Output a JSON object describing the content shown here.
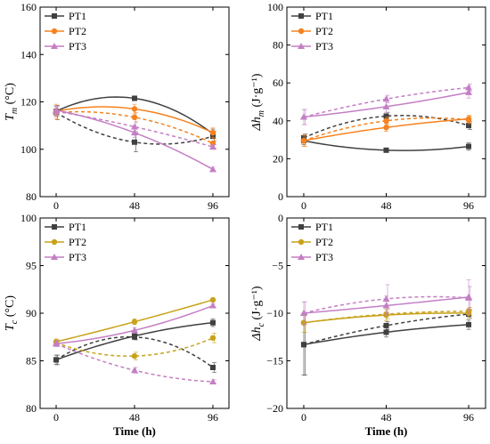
{
  "chart_data": [
    {
      "type": "line",
      "ylabel": "T_m (°C)",
      "xlabel": "",
      "ylim": [
        80,
        160
      ],
      "yticks": [
        80,
        100,
        120,
        140,
        160
      ],
      "x": [
        0,
        48,
        96
      ],
      "xticks": [
        "0",
        "48",
        "96"
      ],
      "legend_position": "top-left",
      "series": [
        {
          "name": "PT1",
          "color": "#404040",
          "marker": "square",
          "values": [
            116.0,
            121.5,
            106.5
          ],
          "errors": [
            2,
            1,
            2
          ],
          "dashed_values": [
            115.5,
            103.0,
            105.5
          ],
          "dashed_errors": [
            3,
            4,
            2
          ]
        },
        {
          "name": "PT2",
          "color": "#f5821f",
          "marker": "circle",
          "values": [
            116.0,
            117.0,
            107.0
          ],
          "errors": [
            3,
            2,
            2
          ],
          "dashed_values": [
            115.5,
            113.5,
            102.5
          ],
          "dashed_errors": [
            3,
            2,
            2
          ]
        },
        {
          "name": "PT3",
          "color": "#c47fc4",
          "marker": "triangle",
          "values": [
            116.5,
            107.0,
            91.5
          ],
          "errors": [
            2,
            2,
            1
          ],
          "dashed_values": [
            116.0,
            109.5,
            101.0
          ],
          "dashed_errors": [
            2,
            2,
            1
          ]
        }
      ]
    },
    {
      "type": "line",
      "ylabel": "Δh_m (J·g⁻¹)",
      "xlabel": "",
      "ylim": [
        0,
        100
      ],
      "yticks": [
        0,
        20,
        40,
        60,
        80,
        100
      ],
      "x": [
        0,
        48,
        96
      ],
      "xticks": [
        "0",
        "48",
        "96"
      ],
      "legend_position": "top-left",
      "series": [
        {
          "name": "PT1",
          "color": "#404040",
          "marker": "square",
          "values": [
            29.5,
            24.5,
            26.5
          ],
          "errors": [
            2,
            1,
            2
          ],
          "dashed_values": [
            31.0,
            42.5,
            37.5
          ],
          "dashed_errors": [
            2,
            2,
            2
          ]
        },
        {
          "name": "PT2",
          "color": "#f5821f",
          "marker": "circle",
          "values": [
            29.5,
            36.5,
            41.0
          ],
          "errors": [
            3,
            2,
            2
          ],
          "dashed_values": [
            29.5,
            40.0,
            40.5
          ],
          "dashed_errors": [
            3,
            2,
            2
          ]
        },
        {
          "name": "PT3",
          "color": "#c47fc4",
          "marker": "triangle",
          "values": [
            42.0,
            47.5,
            55.0
          ],
          "errors": [
            4,
            3,
            3
          ],
          "dashed_values": [
            42.0,
            51.5,
            57.5
          ],
          "dashed_errors": [
            4,
            2,
            2
          ]
        }
      ]
    },
    {
      "type": "line",
      "ylabel": "T_c (°C)",
      "xlabel": "Time (h)",
      "ylim": [
        80,
        100
      ],
      "yticks": [
        80,
        85,
        90,
        95,
        100
      ],
      "x": [
        0,
        48,
        96
      ],
      "xticks": [
        "0",
        "48",
        "96"
      ],
      "legend_position": "top-left",
      "series": [
        {
          "name": "PT1",
          "color": "#404040",
          "marker": "square",
          "values": [
            85.1,
            87.6,
            89.0
          ],
          "errors": [
            0.5,
            0.3,
            0.4
          ],
          "dashed_values": [
            85.1,
            87.5,
            84.3
          ],
          "dashed_errors": [
            0.5,
            0.3,
            0.5
          ]
        },
        {
          "name": "PT2",
          "color": "#c8a21a",
          "marker": "circle",
          "values": [
            87.0,
            89.1,
            91.4
          ],
          "errors": [
            0.3,
            0.3,
            0.2
          ],
          "dashed_values": [
            86.9,
            85.5,
            87.4
          ],
          "dashed_errors": [
            0.3,
            0.4,
            0.5
          ]
        },
        {
          "name": "PT3",
          "color": "#c47fc4",
          "marker": "triangle",
          "values": [
            86.8,
            88.2,
            90.8
          ],
          "errors": [
            0.3,
            0.3,
            0.2
          ],
          "dashed_values": [
            86.8,
            84.0,
            82.8
          ],
          "dashed_errors": [
            0.3,
            0.3,
            0.2
          ]
        }
      ]
    },
    {
      "type": "line",
      "ylabel": "Δh_c (J·g⁻¹)",
      "xlabel": "Time (h)",
      "ylim": [
        -20,
        0
      ],
      "yticks": [
        -20,
        -15,
        -10,
        -5,
        0
      ],
      "x": [
        0,
        48,
        96
      ],
      "xticks": [
        "0",
        "48",
        "96"
      ],
      "legend_position": "top-left",
      "series": [
        {
          "name": "PT1",
          "color": "#404040",
          "marker": "square",
          "values": [
            -13.3,
            -12.0,
            -11.2
          ],
          "errors": [
            3.2,
            0.5,
            0.5
          ],
          "dashed_values": [
            -13.3,
            -11.3,
            -10.1
          ],
          "dashed_errors": [
            3.2,
            0.4,
            0.4
          ]
        },
        {
          "name": "PT2",
          "color": "#c8a21a",
          "marker": "circle",
          "values": [
            -11.0,
            -10.2,
            -10.0
          ],
          "errors": [
            1.0,
            0.6,
            0.5
          ],
          "dashed_values": [
            -11.0,
            -10.1,
            -9.8
          ],
          "dashed_errors": [
            1.0,
            0.5,
            0.4
          ]
        },
        {
          "name": "PT3",
          "color": "#c47fc4",
          "marker": "triangle",
          "values": [
            -10.0,
            -9.2,
            -8.3
          ],
          "errors": [
            1.2,
            1.0,
            1.8
          ],
          "dashed_values": [
            -10.0,
            -8.5,
            -8.4
          ],
          "dashed_errors": [
            1.2,
            1.5,
            1.2
          ]
        }
      ]
    }
  ]
}
